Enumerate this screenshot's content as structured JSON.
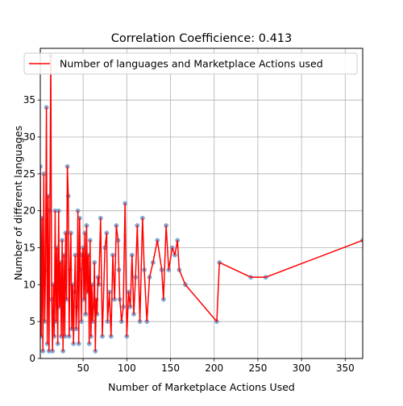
{
  "chart_data": {
    "type": "line",
    "title": "Correlation Coefficience: 0.413",
    "xlabel": "Number of Marketplace Actions Used",
    "ylabel": "Number of different languages",
    "xlim": [
      1,
      370
    ],
    "ylim": [
      0,
      42
    ],
    "xticks": [
      50,
      100,
      150,
      200,
      250,
      300,
      350
    ],
    "yticks": [
      0,
      5,
      10,
      15,
      20,
      25,
      30,
      35
    ],
    "grid": true,
    "legend": {
      "placement": "top-left"
    },
    "colors": {
      "line": "#ff0000",
      "marker": "#6fa8dc"
    },
    "series": [
      {
        "name": "Number of languages and Marketplace Actions used",
        "x": [
          1,
          2,
          3,
          4,
          5,
          6,
          7,
          8,
          9,
          10,
          11,
          12,
          13,
          14,
          15,
          16,
          17,
          18,
          19,
          20,
          21,
          22,
          23,
          24,
          25,
          26,
          27,
          28,
          29,
          30,
          31,
          32,
          33,
          34,
          35,
          36,
          37,
          38,
          39,
          40,
          41,
          42,
          43,
          44,
          45,
          46,
          47,
          48,
          49,
          50,
          51,
          52,
          53,
          54,
          55,
          56,
          57,
          58,
          59,
          60,
          61,
          62,
          63,
          64,
          65,
          66,
          67,
          68,
          70,
          72,
          75,
          77,
          78,
          80,
          82,
          84,
          86,
          88,
          90,
          91,
          92,
          94,
          96,
          98,
          100,
          102,
          104,
          106,
          108,
          110,
          112,
          115,
          118,
          120,
          123,
          126,
          130,
          135,
          140,
          142,
          145,
          148,
          152,
          155,
          158,
          160,
          167,
          203,
          206,
          242,
          259,
          370
        ],
        "y": [
          26,
          3,
          19,
          1,
          25,
          5,
          12,
          34,
          2,
          22,
          1,
          20,
          41,
          8,
          1,
          10,
          3,
          20,
          5,
          15,
          2,
          20,
          7,
          13,
          3,
          16,
          1,
          14,
          3,
          17,
          8,
          26,
          22,
          3,
          12,
          17,
          4,
          10,
          2,
          9,
          14,
          4,
          7,
          20,
          2,
          19,
          12,
          5,
          14,
          15,
          8,
          17,
          6,
          18,
          9,
          14,
          2,
          16,
          3,
          10,
          5,
          7,
          13,
          1,
          8,
          6,
          11,
          10,
          19,
          3,
          15,
          17,
          5,
          9,
          3,
          14,
          8,
          18,
          16,
          12,
          8,
          5,
          7,
          21,
          3,
          9,
          7,
          14,
          6,
          11,
          18,
          5,
          19,
          12,
          5,
          11,
          13,
          16,
          12,
          8,
          18,
          12,
          15,
          14,
          16,
          12,
          10,
          5,
          13,
          11,
          11,
          16
        ]
      }
    ]
  }
}
